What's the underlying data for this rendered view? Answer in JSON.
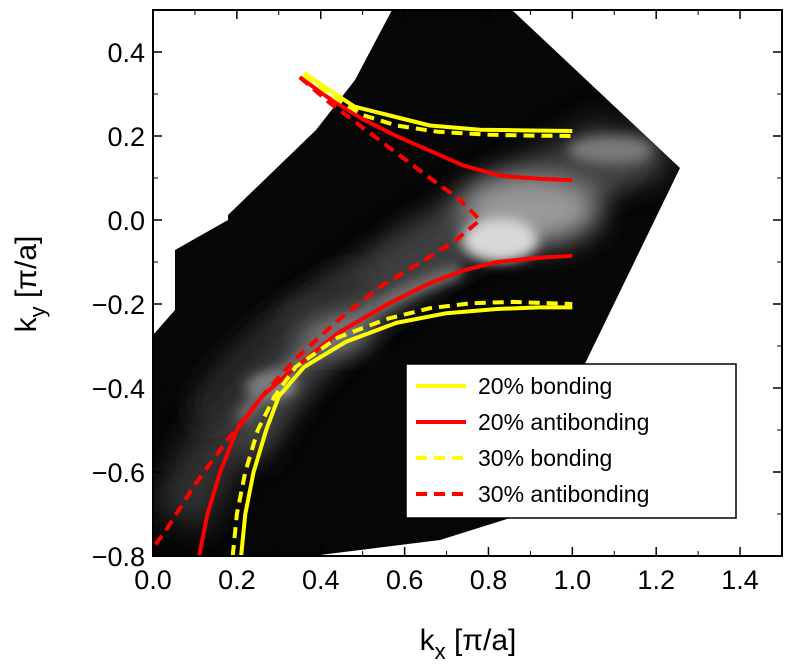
{
  "chart_data": {
    "type": "line",
    "title": "",
    "xlabel": "k",
    "xlabel_sub": "x",
    "xlabel_unit": " [π/a]",
    "ylabel": "k",
    "ylabel_sub": "y",
    "ylabel_unit": " [π/a]",
    "xlim": [
      0.0,
      1.5
    ],
    "ylim": [
      -0.8,
      0.5
    ],
    "x_ticks": [
      0.0,
      0.2,
      0.4,
      0.6,
      0.8,
      1.0,
      1.2,
      1.4
    ],
    "x_tick_labels": [
      "0.0",
      "0.2",
      "0.4",
      "0.6",
      "0.8",
      "1.0",
      "1.2",
      "1.4"
    ],
    "y_ticks": [
      0.4,
      0.2,
      0.0,
      -0.2,
      -0.4,
      -0.6,
      -0.8
    ],
    "y_tick_labels": [
      "0.4",
      "0.2",
      "0.0",
      "−0.2",
      "−0.4",
      "−0.6",
      "−0.8"
    ],
    "background": "ARPES intensity map (grayscale) on a rotated rectangular region",
    "legend_position": "bottom-right",
    "series": [
      {
        "name": "20% bonding",
        "color": "#ffff00",
        "dash": "solid",
        "branches": [
          [
            [
              0.36,
              0.35
            ],
            [
              0.42,
              0.31
            ],
            [
              0.48,
              0.27
            ],
            [
              0.56,
              0.25
            ],
            [
              0.66,
              0.225
            ],
            [
              0.78,
              0.215
            ],
            [
              0.9,
              0.213
            ],
            [
              1.0,
              0.212
            ]
          ],
          [
            [
              0.21,
              -0.8
            ],
            [
              0.22,
              -0.7
            ],
            [
              0.24,
              -0.6
            ],
            [
              0.27,
              -0.5
            ],
            [
              0.3,
              -0.42
            ],
            [
              0.36,
              -0.35
            ],
            [
              0.46,
              -0.29
            ],
            [
              0.58,
              -0.245
            ],
            [
              0.7,
              -0.222
            ],
            [
              0.82,
              -0.212
            ],
            [
              0.92,
              -0.208
            ],
            [
              1.0,
              -0.208
            ]
          ]
        ]
      },
      {
        "name": "20% antibonding",
        "color": "#ff0000",
        "dash": "solid",
        "branches": [
          [
            [
              0.35,
              0.34
            ],
            [
              0.42,
              0.29
            ],
            [
              0.5,
              0.24
            ],
            [
              0.58,
              0.2
            ],
            [
              0.66,
              0.165
            ],
            [
              0.74,
              0.13
            ],
            [
              0.83,
              0.105
            ],
            [
              0.92,
              0.098
            ],
            [
              1.0,
              0.095
            ]
          ],
          [
            [
              0.11,
              -0.8
            ],
            [
              0.13,
              -0.7
            ],
            [
              0.16,
              -0.6
            ],
            [
              0.2,
              -0.5
            ],
            [
              0.26,
              -0.42
            ],
            [
              0.34,
              -0.35
            ],
            [
              0.44,
              -0.27
            ],
            [
              0.56,
              -0.2
            ],
            [
              0.66,
              -0.15
            ],
            [
              0.74,
              -0.12
            ],
            [
              0.82,
              -0.1
            ],
            [
              0.92,
              -0.09
            ],
            [
              1.0,
              -0.085
            ]
          ]
        ]
      },
      {
        "name": "30% bonding",
        "color": "#ffff00",
        "dash": "dashed",
        "branches": [
          [
            [
              0.36,
              0.345
            ],
            [
              0.42,
              0.3
            ],
            [
              0.5,
              0.25
            ],
            [
              0.58,
              0.225
            ],
            [
              0.68,
              0.21
            ],
            [
              0.8,
              0.203
            ],
            [
              0.9,
              0.201
            ],
            [
              1.0,
              0.2
            ]
          ],
          [
            [
              0.19,
              -0.8
            ],
            [
              0.2,
              -0.7
            ],
            [
              0.22,
              -0.6
            ],
            [
              0.25,
              -0.5
            ],
            [
              0.29,
              -0.42
            ],
            [
              0.34,
              -0.35
            ],
            [
              0.44,
              -0.28
            ],
            [
              0.56,
              -0.235
            ],
            [
              0.66,
              -0.21
            ],
            [
              0.76,
              -0.198
            ],
            [
              0.86,
              -0.195
            ],
            [
              1.0,
              -0.2
            ]
          ]
        ]
      },
      {
        "name": "30% antibonding",
        "color": "#ff0000",
        "dash": "dashed",
        "branches": [
          [
            [
              0.35,
              0.34
            ],
            [
              0.42,
              0.28
            ],
            [
              0.5,
              0.22
            ],
            [
              0.58,
              0.16
            ],
            [
              0.66,
              0.1
            ],
            [
              0.73,
              0.05
            ],
            [
              0.78,
              0.0
            ],
            [
              0.72,
              -0.05
            ],
            [
              0.64,
              -0.1
            ],
            [
              0.54,
              -0.16
            ],
            [
              0.44,
              -0.24
            ],
            [
              0.34,
              -0.33
            ],
            [
              0.26,
              -0.42
            ],
            [
              0.18,
              -0.52
            ],
            [
              0.1,
              -0.63
            ],
            [
              0.03,
              -0.74
            ],
            [
              0.0,
              -0.78
            ]
          ]
        ]
      }
    ]
  }
}
